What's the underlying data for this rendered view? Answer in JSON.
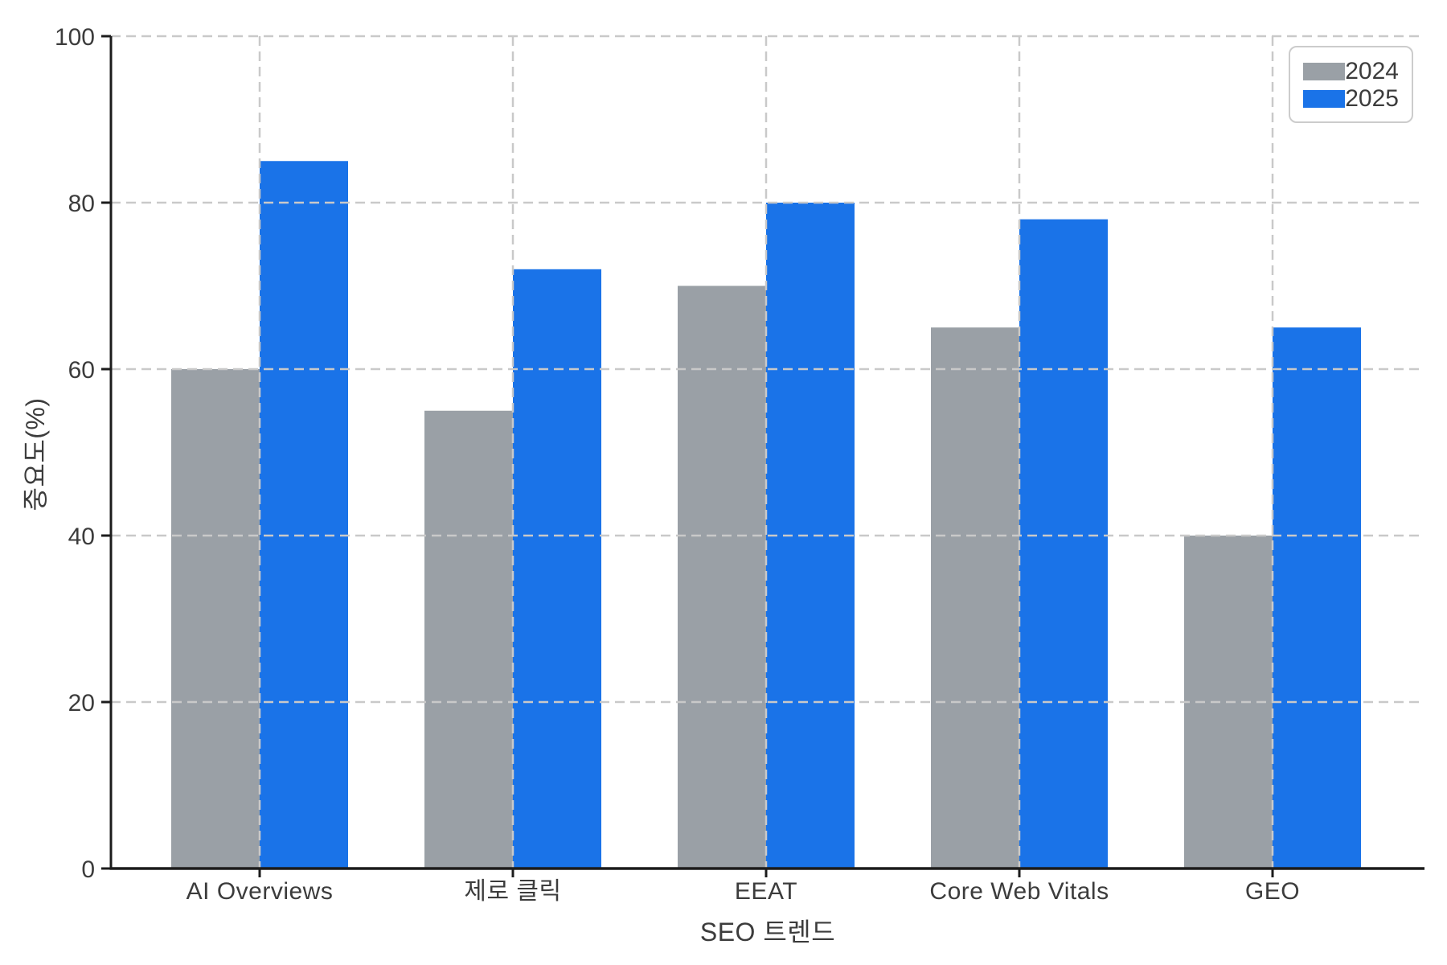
{
  "chart_data": {
    "type": "bar",
    "categories": [
      "AI Overviews",
      "제로 클릭",
      "EEAT",
      "Core Web Vitals",
      "GEO"
    ],
    "series": [
      {
        "name": "2024",
        "color": "#9aa0a6",
        "values": [
          60,
          55,
          70,
          65,
          40
        ]
      },
      {
        "name": "2025",
        "color": "#1a73e8",
        "values": [
          85,
          72,
          80,
          78,
          65
        ]
      }
    ],
    "title": "",
    "xlabel": "SEO 트렌드",
    "ylabel": "중요도(%)",
    "ylim": [
      0,
      100
    ],
    "yticks": [
      0,
      20,
      40,
      60,
      80,
      100
    ],
    "grid": "dashed",
    "grid_on": true,
    "legend_position": "top-right"
  },
  "colors": {
    "grid": "#c9c9c9",
    "spine": "#1c1c1c",
    "tick_text": "#3c3c3c",
    "background": "#ffffff",
    "legend_border": "#cccccc"
  }
}
